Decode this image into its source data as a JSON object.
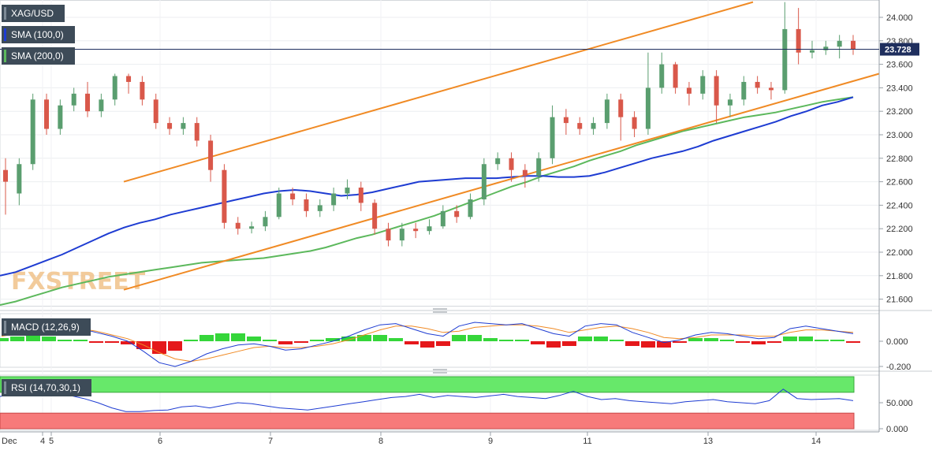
{
  "legend": {
    "symbol": "XAG/USD",
    "sma100": "SMA (100,0)",
    "sma200": "SMA (200,0)",
    "macd": "MACD (12,26,9)",
    "rsi": "RSI (14,70,30,1)"
  },
  "watermark": "FXSTREET",
  "chart_data": [
    {
      "type": "candlestick",
      "symbol": "XAG/USD",
      "yticks": [
        "24.000",
        "23.800",
        "23.600",
        "23.400",
        "23.200",
        "23.000",
        "22.800",
        "22.600",
        "22.400",
        "22.200",
        "22.000",
        "21.800",
        "21.600"
      ],
      "ylim": [
        21.55,
        24.13
      ],
      "last_price": "23.728",
      "x_labels": [
        "Dec",
        "4",
        "5",
        "6",
        "7",
        "8",
        "9",
        "11",
        "13",
        "14"
      ],
      "sma100": [
        21.8,
        21.83,
        21.88,
        21.93,
        21.98,
        22.04,
        22.1,
        22.16,
        22.21,
        22.25,
        22.28,
        22.32,
        22.35,
        22.38,
        22.41,
        22.44,
        22.47,
        22.5,
        22.52,
        22.53,
        22.52,
        22.5,
        22.48,
        22.49,
        22.51,
        22.54,
        22.57,
        22.6,
        22.61,
        22.62,
        22.63,
        22.63,
        22.63,
        22.64,
        22.65,
        22.65,
        22.64,
        22.64,
        22.65,
        22.68,
        22.72,
        22.76,
        22.8,
        22.83,
        22.86,
        22.9,
        22.95,
        22.99,
        23.03,
        23.07,
        23.11,
        23.16,
        23.2,
        23.25,
        23.28,
        23.32
      ],
      "sma200": [
        21.55,
        21.58,
        21.62,
        21.66,
        21.7,
        21.73,
        21.76,
        21.79,
        21.81,
        21.83,
        21.85,
        21.87,
        21.89,
        21.91,
        21.92,
        21.93,
        21.94,
        21.95,
        21.97,
        21.99,
        22.01,
        22.04,
        22.08,
        22.12,
        22.15,
        22.19,
        22.23,
        22.27,
        22.31,
        22.36,
        22.41,
        22.46,
        22.51,
        22.56,
        22.6,
        22.65,
        22.69,
        22.73,
        22.78,
        22.82,
        22.86,
        22.91,
        22.95,
        22.99,
        23.03,
        23.06,
        23.09,
        23.12,
        23.15,
        23.17,
        23.19,
        23.22,
        23.25,
        23.28,
        23.3,
        23.32
      ],
      "candles": [
        [
          22.7,
          22.6,
          22.8,
          22.32
        ],
        [
          22.5,
          22.75,
          22.8,
          22.4
        ],
        [
          22.75,
          23.3,
          23.35,
          22.7
        ],
        [
          23.3,
          23.05,
          23.35,
          23.0
        ],
        [
          23.05,
          23.25,
          23.3,
          23.0
        ],
        [
          23.25,
          23.35,
          23.4,
          23.2
        ],
        [
          23.35,
          23.2,
          23.45,
          23.15
        ],
        [
          23.2,
          23.3,
          23.35,
          23.15
        ],
        [
          23.3,
          23.5,
          23.52,
          23.25
        ],
        [
          23.5,
          23.45,
          23.52,
          23.35
        ],
        [
          23.45,
          23.3,
          23.5,
          23.25
        ],
        [
          23.3,
          23.1,
          23.35,
          23.05
        ],
        [
          23.1,
          23.05,
          23.15,
          23.0
        ],
        [
          23.05,
          23.1,
          23.15,
          23.0
        ],
        [
          23.1,
          22.95,
          23.15,
          22.9
        ],
        [
          22.95,
          22.7,
          23.0,
          22.6
        ],
        [
          22.7,
          22.25,
          22.75,
          22.2
        ],
        [
          22.25,
          22.2,
          22.3,
          22.15
        ],
        [
          22.2,
          22.22,
          22.26,
          22.16
        ],
        [
          22.22,
          22.3,
          22.35,
          22.18
        ],
        [
          22.3,
          22.5,
          22.55,
          22.28
        ],
        [
          22.5,
          22.45,
          22.55,
          22.4
        ],
        [
          22.45,
          22.35,
          22.5,
          22.3
        ],
        [
          22.35,
          22.4,
          22.45,
          22.3
        ],
        [
          22.4,
          22.5,
          22.55,
          22.35
        ],
        [
          22.5,
          22.55,
          22.62,
          22.45
        ],
        [
          22.55,
          22.42,
          22.6,
          22.35
        ],
        [
          22.42,
          22.2,
          22.45,
          22.15
        ],
        [
          22.2,
          22.1,
          22.25,
          22.05
        ],
        [
          22.1,
          22.2,
          22.25,
          22.05
        ],
        [
          22.2,
          22.18,
          22.25,
          22.12
        ],
        [
          22.18,
          22.22,
          22.28,
          22.15
        ],
        [
          22.22,
          22.35,
          22.4,
          22.2
        ],
        [
          22.35,
          22.3,
          22.4,
          22.25
        ],
        [
          22.3,
          22.45,
          22.5,
          22.28
        ],
        [
          22.45,
          22.75,
          22.8,
          22.4
        ],
        [
          22.75,
          22.8,
          22.85,
          22.7
        ],
        [
          22.8,
          22.7,
          22.85,
          22.6
        ],
        [
          22.7,
          22.65,
          22.75,
          22.55
        ],
        [
          22.65,
          22.8,
          22.85,
          22.6
        ],
        [
          22.8,
          23.15,
          23.25,
          22.75
        ],
        [
          23.15,
          23.1,
          23.22,
          23.0
        ],
        [
          23.1,
          23.05,
          23.15,
          23.0
        ],
        [
          23.05,
          23.1,
          23.15,
          23.0
        ],
        [
          23.1,
          23.3,
          23.35,
          23.05
        ],
        [
          23.3,
          23.15,
          23.35,
          22.95
        ],
        [
          23.15,
          23.05,
          23.2,
          22.98
        ],
        [
          23.05,
          23.4,
          23.7,
          23.0
        ],
        [
          23.4,
          23.6,
          23.7,
          23.35
        ],
        [
          23.6,
          23.4,
          23.62,
          23.35
        ],
        [
          23.4,
          23.35,
          23.45,
          23.25
        ],
        [
          23.35,
          23.5,
          23.55,
          23.3
        ],
        [
          23.5,
          23.25,
          23.55,
          23.1
        ],
        [
          23.25,
          23.3,
          23.35,
          23.15
        ],
        [
          23.3,
          23.45,
          23.5,
          23.25
        ],
        [
          23.45,
          23.4,
          23.5,
          23.35
        ],
        [
          23.4,
          23.38,
          23.45,
          23.3
        ],
        [
          23.38,
          23.9,
          24.13,
          23.35
        ],
        [
          23.9,
          23.7,
          24.08,
          23.6
        ],
        [
          23.7,
          23.72,
          23.8,
          23.65
        ],
        [
          23.72,
          23.75,
          23.8,
          23.68
        ],
        [
          23.75,
          23.8,
          23.85,
          23.65
        ],
        [
          23.8,
          23.728,
          23.85,
          23.68
        ]
      ],
      "channel_upper": [
        [
          22.6,
          24.13
        ]
      ],
      "channel_lower": [
        [
          21.68,
          23.52
        ]
      ]
    },
    {
      "type": "macd",
      "name": "MACD (12,26,9)",
      "yticks": [
        "0.000",
        "-0.200"
      ],
      "ylim": [
        -0.24,
        0.24
      ],
      "macd_line": [
        0.06,
        0.09,
        0.12,
        0.13,
        0.12,
        0.1,
        0.07,
        0.04,
        0.0,
        -0.08,
        -0.17,
        -0.2,
        -0.16,
        -0.1,
        -0.06,
        -0.03,
        -0.02,
        -0.04,
        -0.07,
        -0.06,
        -0.03,
        0.0,
        0.04,
        0.09,
        0.13,
        0.14,
        0.1,
        0.06,
        0.04,
        0.12,
        0.15,
        0.14,
        0.13,
        0.14,
        0.1,
        0.06,
        0.04,
        0.12,
        0.14,
        0.13,
        0.07,
        0.03,
        -0.01,
        0.01,
        0.05,
        0.07,
        0.06,
        0.04,
        0.02,
        0.03,
        0.1,
        0.12,
        0.1,
        0.08,
        0.06
      ],
      "signal_line": [
        0.04,
        0.06,
        0.08,
        0.1,
        0.11,
        0.1,
        0.08,
        0.05,
        0.02,
        -0.03,
        -0.09,
        -0.14,
        -0.16,
        -0.14,
        -0.11,
        -0.08,
        -0.05,
        -0.04,
        -0.05,
        -0.05,
        -0.04,
        -0.02,
        0.01,
        0.05,
        0.09,
        0.12,
        0.12,
        0.1,
        0.07,
        0.08,
        0.11,
        0.12,
        0.13,
        0.13,
        0.12,
        0.1,
        0.07,
        0.09,
        0.11,
        0.12,
        0.1,
        0.07,
        0.03,
        0.02,
        0.03,
        0.05,
        0.05,
        0.05,
        0.04,
        0.04,
        0.07,
        0.09,
        0.09,
        0.08,
        0.07
      ]
    },
    {
      "type": "rsi",
      "name": "RSI (14,70,30,1)",
      "yticks": [
        "50.000",
        "0.000"
      ],
      "ylim": [
        0,
        100
      ],
      "overbought": 70,
      "oversold": 30,
      "values": [
        62,
        68,
        72,
        74,
        70,
        64,
        58,
        50,
        40,
        33,
        33,
        35,
        36,
        42,
        44,
        40,
        45,
        50,
        48,
        44,
        40,
        38,
        36,
        40,
        44,
        48,
        52,
        56,
        60,
        62,
        66,
        60,
        64,
        62,
        60,
        63,
        66,
        62,
        60,
        58,
        64,
        72,
        62,
        56,
        58,
        54,
        52,
        50,
        48,
        52,
        54,
        56,
        52,
        50,
        48,
        54,
        76,
        58,
        56,
        57,
        58,
        54
      ]
    }
  ]
}
